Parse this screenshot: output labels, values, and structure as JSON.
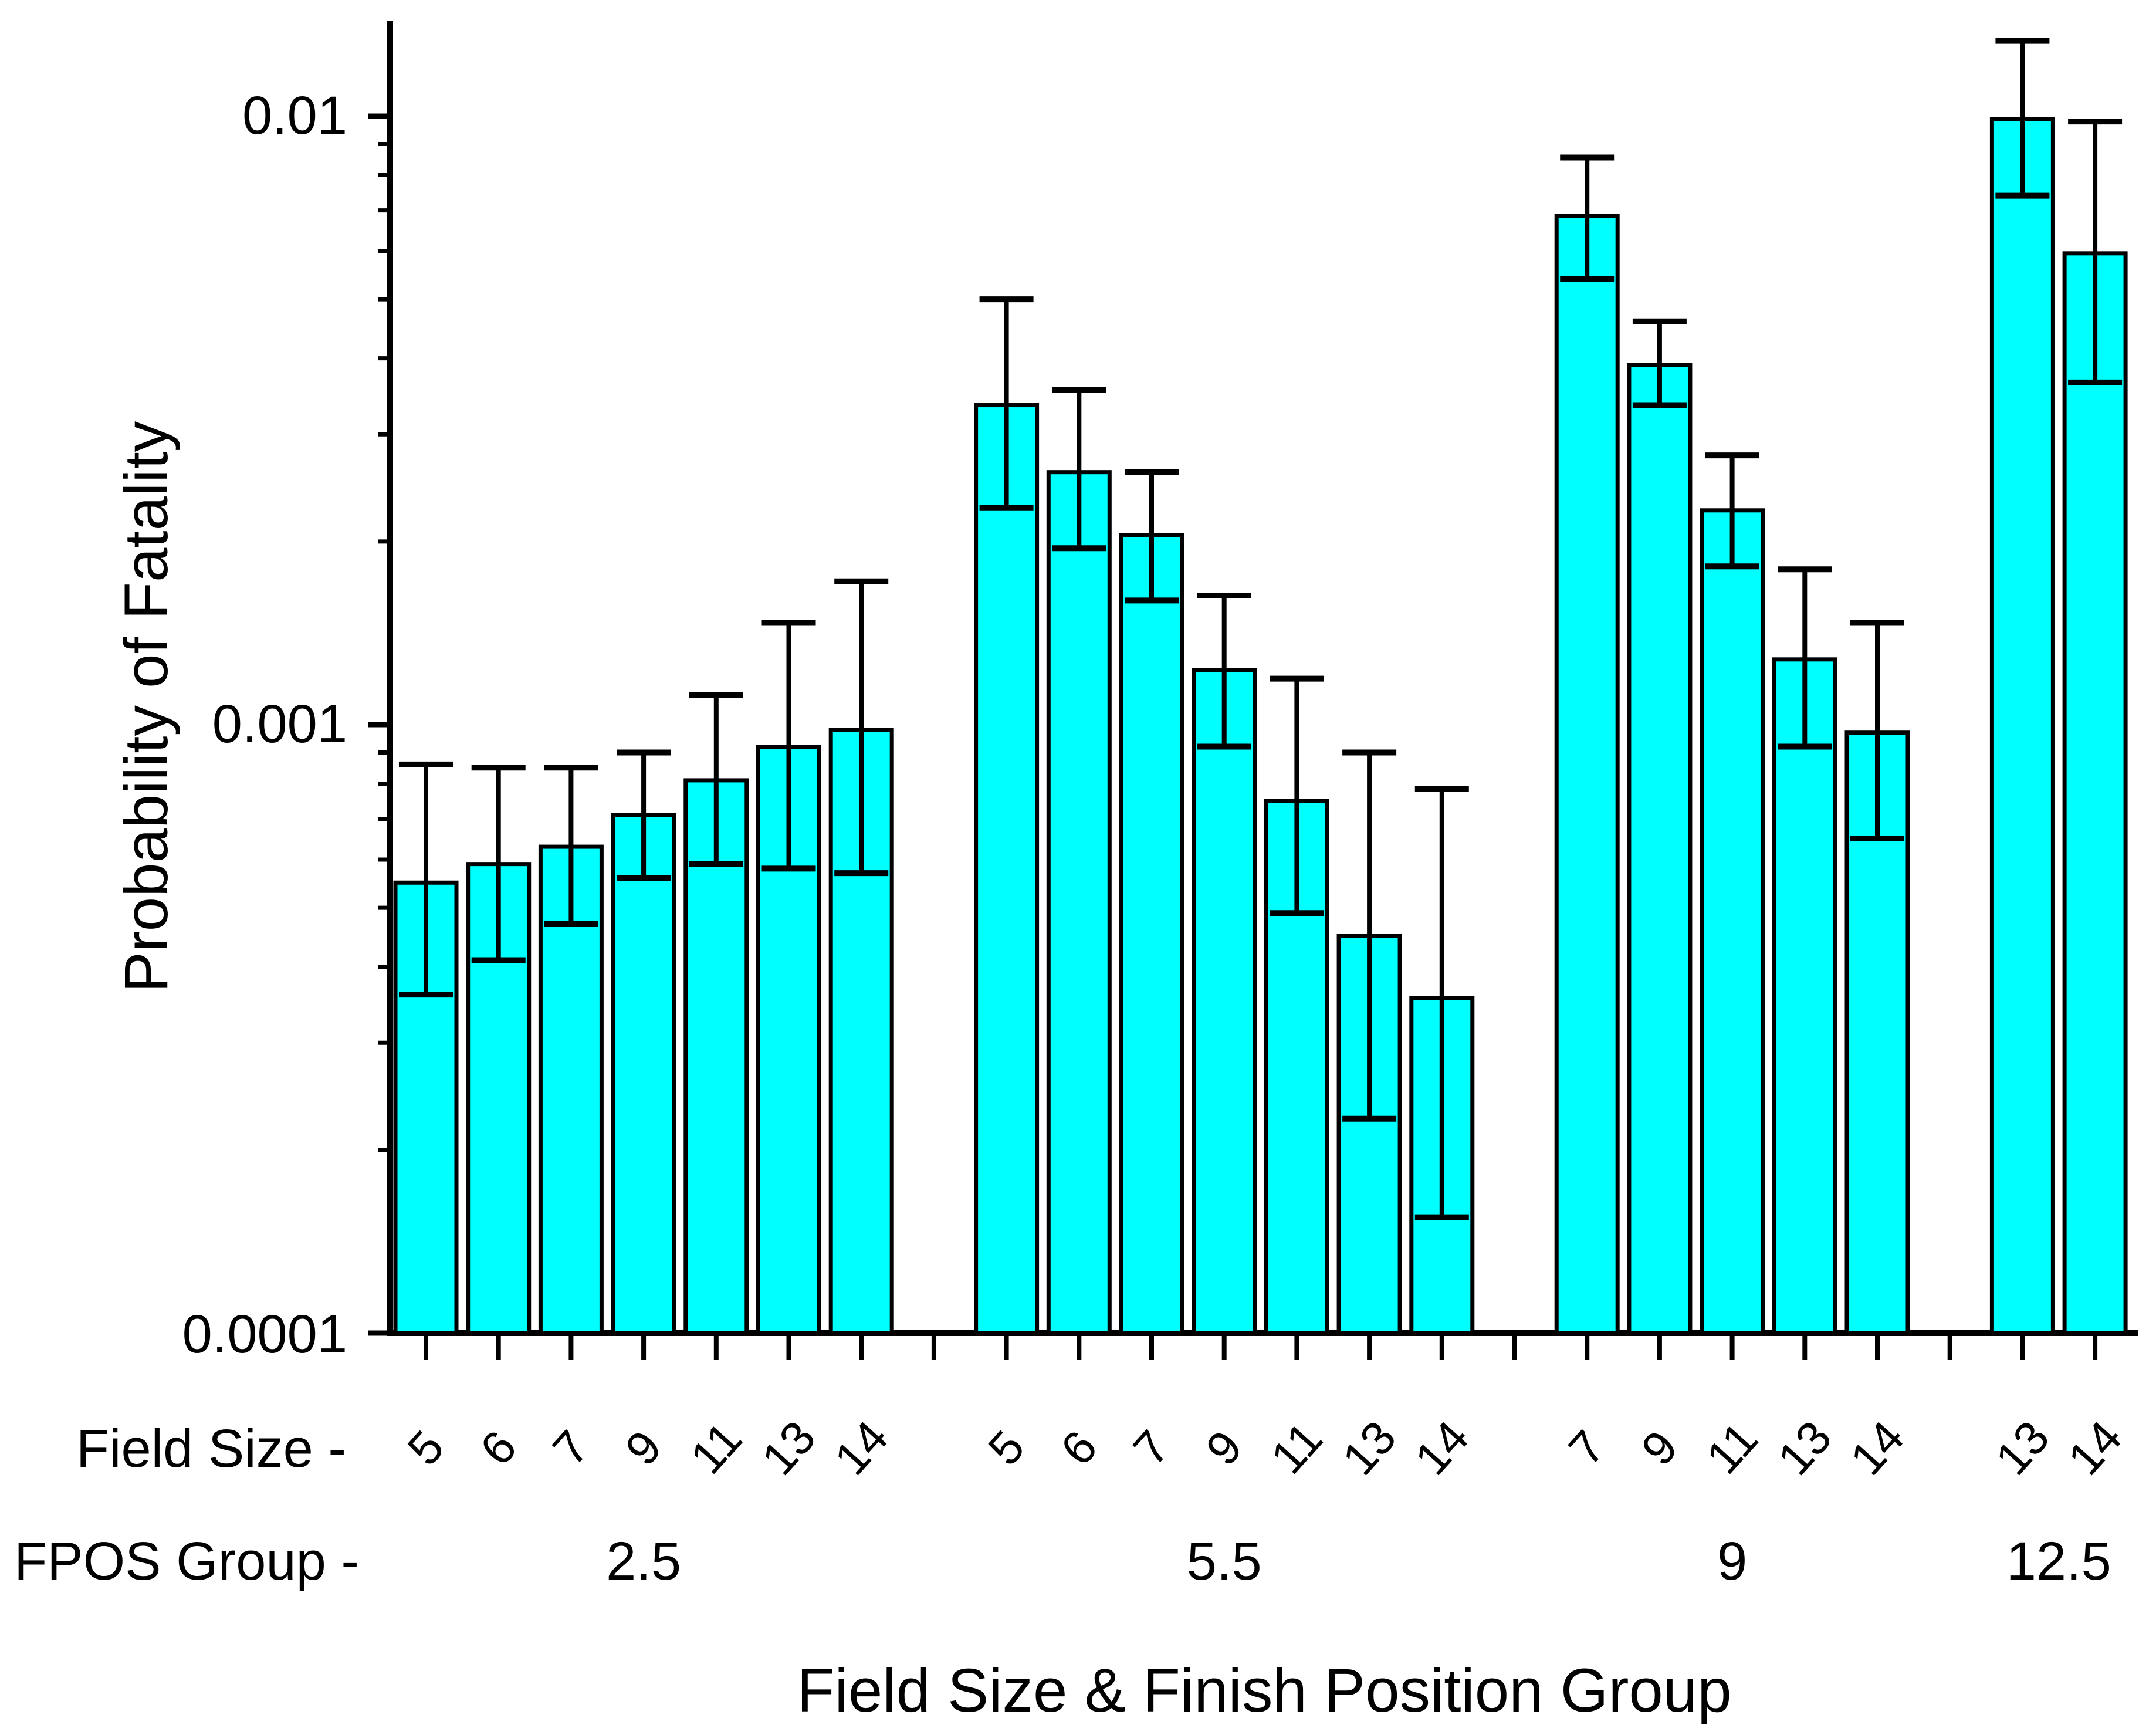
{
  "chart_data": {
    "type": "bar",
    "title": "Field Size & Finish Position Group",
    "ylabel": "Probability of Fatality",
    "xlabel_rows": {
      "field_size": "Field Size -",
      "fpos": "FPOS Group -"
    },
    "y_scale": "log",
    "ylim": [
      0.0001,
      0.0142
    ],
    "y_ticks": [
      "0.01",
      "0.001",
      "0.0001"
    ],
    "y_tick_values": [
      0.01,
      0.001,
      0.0001
    ],
    "grid": false,
    "legend": "none",
    "bar_color": "#00FFFF",
    "bar_edge_color": "#000000",
    "error_bars": true,
    "groups": [
      {
        "fpos": "2.5",
        "bars": [
          {
            "field": "5",
            "p": 0.00055,
            "lo": 0.00036,
            "hi": 0.00086
          },
          {
            "field": "6",
            "p": 0.00059,
            "lo": 0.00041,
            "hi": 0.00085
          },
          {
            "field": "7",
            "p": 0.00063,
            "lo": 0.00047,
            "hi": 0.00085
          },
          {
            "field": "9",
            "p": 0.00071,
            "lo": 0.00056,
            "hi": 0.0009
          },
          {
            "field": "11",
            "p": 0.00081,
            "lo": 0.00059,
            "hi": 0.00112
          },
          {
            "field": "13",
            "p": 0.00092,
            "lo": 0.00058,
            "hi": 0.00147
          },
          {
            "field": "14",
            "p": 0.00098,
            "lo": 0.00057,
            "hi": 0.00172
          }
        ]
      },
      {
        "fpos": "5.5",
        "bars": [
          {
            "field": "5",
            "p": 0.00335,
            "lo": 0.00227,
            "hi": 0.005
          },
          {
            "field": "6",
            "p": 0.0026,
            "lo": 0.00195,
            "hi": 0.00355
          },
          {
            "field": "7",
            "p": 0.00205,
            "lo": 0.0016,
            "hi": 0.0026
          },
          {
            "field": "9",
            "p": 0.00123,
            "lo": 0.00092,
            "hi": 0.00163
          },
          {
            "field": "11",
            "p": 0.00075,
            "lo": 0.00049,
            "hi": 0.00119
          },
          {
            "field": "13",
            "p": 0.00045,
            "lo": 0.000225,
            "hi": 0.0009
          },
          {
            "field": "14",
            "p": 0.000355,
            "lo": 0.000155,
            "hi": 0.000785
          }
        ]
      },
      {
        "fpos": "9",
        "bars": [
          {
            "field": "7",
            "p": 0.00685,
            "lo": 0.0054,
            "hi": 0.00855
          },
          {
            "field": "9",
            "p": 0.0039,
            "lo": 0.00335,
            "hi": 0.0046
          },
          {
            "field": "11",
            "p": 0.00225,
            "lo": 0.00182,
            "hi": 0.00277
          },
          {
            "field": "13",
            "p": 0.00128,
            "lo": 0.00092,
            "hi": 0.0018
          },
          {
            "field": "14",
            "p": 0.00097,
            "lo": 0.00065,
            "hi": 0.00147
          }
        ]
      },
      {
        "fpos": "12.5",
        "bars": [
          {
            "field": "13",
            "p": 0.0099,
            "lo": 0.0074,
            "hi": 0.0133
          },
          {
            "field": "14",
            "p": 0.00595,
            "lo": 0.00365,
            "hi": 0.0098
          }
        ]
      }
    ]
  }
}
